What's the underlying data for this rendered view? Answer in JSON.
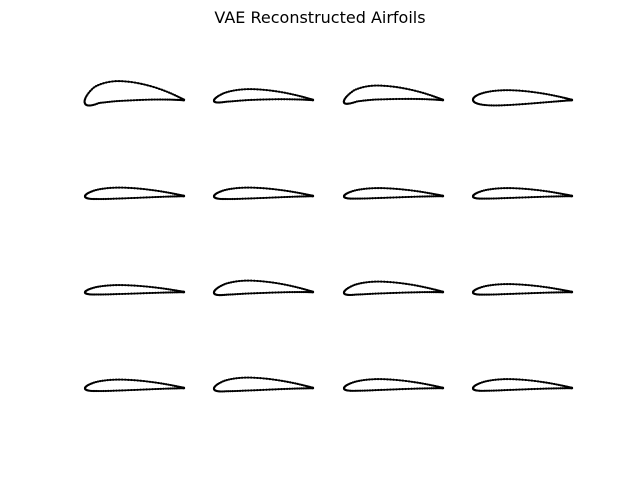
{
  "figure": {
    "title": "VAE Reconstructed Airfoils"
  },
  "chart_data": {
    "type": "scatter",
    "title": "VAE Reconstructed Airfoils",
    "layout": {
      "rows": 4,
      "cols": 4
    },
    "axes_visible": false,
    "grid": false,
    "marker_color": "#000000",
    "line_color": "#000000",
    "panels": [
      {
        "name": "airfoil-1-1",
        "camber": 0.09,
        "camber_pos": 0.36,
        "thickness": 0.2,
        "le_droop": 0.035
      },
      {
        "name": "airfoil-1-2",
        "camber": 0.055,
        "camber_pos": 0.4,
        "thickness": 0.11,
        "le_droop": 0.01
      },
      {
        "name": "airfoil-1-3",
        "camber": 0.075,
        "camber_pos": 0.35,
        "thickness": 0.14,
        "le_droop": 0.025
      },
      {
        "name": "airfoil-1-4",
        "camber": 0.025,
        "camber_pos": 0.45,
        "thickness": 0.15,
        "le_droop": 0.0
      },
      {
        "name": "airfoil-2-1",
        "camber": 0.03,
        "camber_pos": 0.4,
        "thickness": 0.11,
        "le_droop": 0.005
      },
      {
        "name": "airfoil-2-2",
        "camber": 0.03,
        "camber_pos": 0.4,
        "thickness": 0.11,
        "le_droop": 0.005
      },
      {
        "name": "airfoil-2-3",
        "camber": 0.03,
        "camber_pos": 0.4,
        "thickness": 0.1,
        "le_droop": 0.005
      },
      {
        "name": "airfoil-2-4",
        "camber": 0.03,
        "camber_pos": 0.4,
        "thickness": 0.1,
        "le_droop": 0.005
      },
      {
        "name": "airfoil-3-1",
        "camber": 0.025,
        "camber_pos": 0.4,
        "thickness": 0.09,
        "le_droop": 0.005
      },
      {
        "name": "airfoil-3-2",
        "camber": 0.05,
        "camber_pos": 0.38,
        "thickness": 0.13,
        "le_droop": 0.01
      },
      {
        "name": "airfoil-3-3",
        "camber": 0.045,
        "camber_pos": 0.38,
        "thickness": 0.12,
        "le_droop": 0.01
      },
      {
        "name": "airfoil-3-4",
        "camber": 0.03,
        "camber_pos": 0.4,
        "thickness": 0.1,
        "le_droop": 0.005
      },
      {
        "name": "airfoil-4-1",
        "camber": 0.03,
        "camber_pos": 0.4,
        "thickness": 0.11,
        "le_droop": 0.005
      },
      {
        "name": "airfoil-4-2",
        "camber": 0.04,
        "camber_pos": 0.38,
        "thickness": 0.13,
        "le_droop": 0.01
      },
      {
        "name": "airfoil-4-3",
        "camber": 0.035,
        "camber_pos": 0.4,
        "thickness": 0.11,
        "le_droop": 0.005
      },
      {
        "name": "airfoil-4-4",
        "camber": 0.035,
        "camber_pos": 0.4,
        "thickness": 0.11,
        "le_droop": 0.005
      }
    ]
  }
}
